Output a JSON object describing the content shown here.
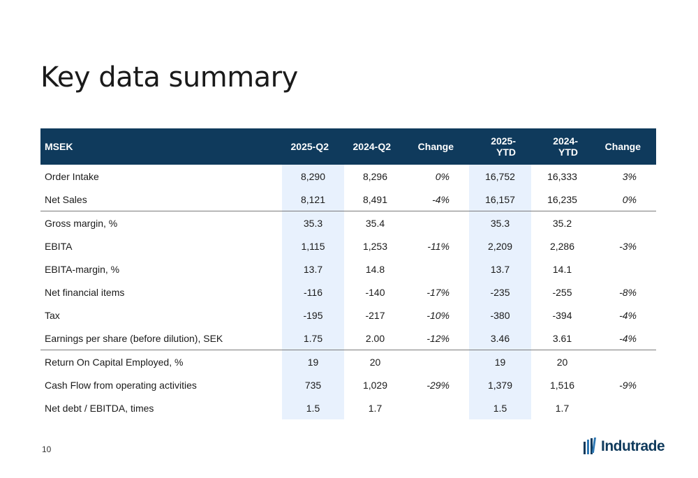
{
  "title": "Key data summary",
  "table": {
    "headers": [
      "MSEK",
      "2025-Q2",
      "2024-Q2",
      "Change",
      "2025-YTD",
      "2024-YTD",
      "Change"
    ],
    "rows": [
      {
        "label": "Order Intake",
        "values": [
          "8,290",
          "8,296",
          "0%",
          "16,752",
          "16,333",
          "3%"
        ]
      },
      {
        "label": "Net Sales",
        "values": [
          "8,121",
          "8,491",
          "-4%",
          "16,157",
          "16,235",
          "0%"
        ]
      },
      {
        "label": "Gross margin, %",
        "values": [
          "35.3",
          "35.4",
          "",
          "35.3",
          "35.2",
          ""
        ]
      },
      {
        "label": "EBITA",
        "values": [
          "1,115",
          "1,253",
          "-11%",
          "2,209",
          "2,286",
          "-3%"
        ]
      },
      {
        "label": "EBITA-margin, %",
        "values": [
          "13.7",
          "14.8",
          "",
          "13.7",
          "14.1",
          ""
        ]
      },
      {
        "label": "Net financial items",
        "values": [
          "-116",
          "-140",
          "-17%",
          "-235",
          "-255",
          "-8%"
        ]
      },
      {
        "label": "Tax",
        "values": [
          "-195",
          "-217",
          "-10%",
          "-380",
          "-394",
          "-4%"
        ]
      },
      {
        "label": "Earnings per share (before dilution), SEK",
        "values": [
          "1.75",
          "2.00",
          "-12%",
          "3.46",
          "3.61",
          "-4%"
        ]
      },
      {
        "label": "Return On Capital Employed, %",
        "values": [
          "19",
          "20",
          "",
          "19",
          "20",
          ""
        ]
      },
      {
        "label": "Cash Flow from operating activities",
        "values": [
          "735",
          "1,029",
          "-29%",
          "1,379",
          "1,516",
          "-9%"
        ]
      },
      {
        "label": "Net debt / EBITDA, times",
        "values": [
          "1.5",
          "1.7",
          "",
          "1.5",
          "1.7",
          ""
        ]
      }
    ]
  },
  "footer": {
    "page_number": "10",
    "logo_text": "Indutrade"
  },
  "colors": {
    "header_bg": "#0f3a5c",
    "highlight_column": "#e8f1fd"
  }
}
